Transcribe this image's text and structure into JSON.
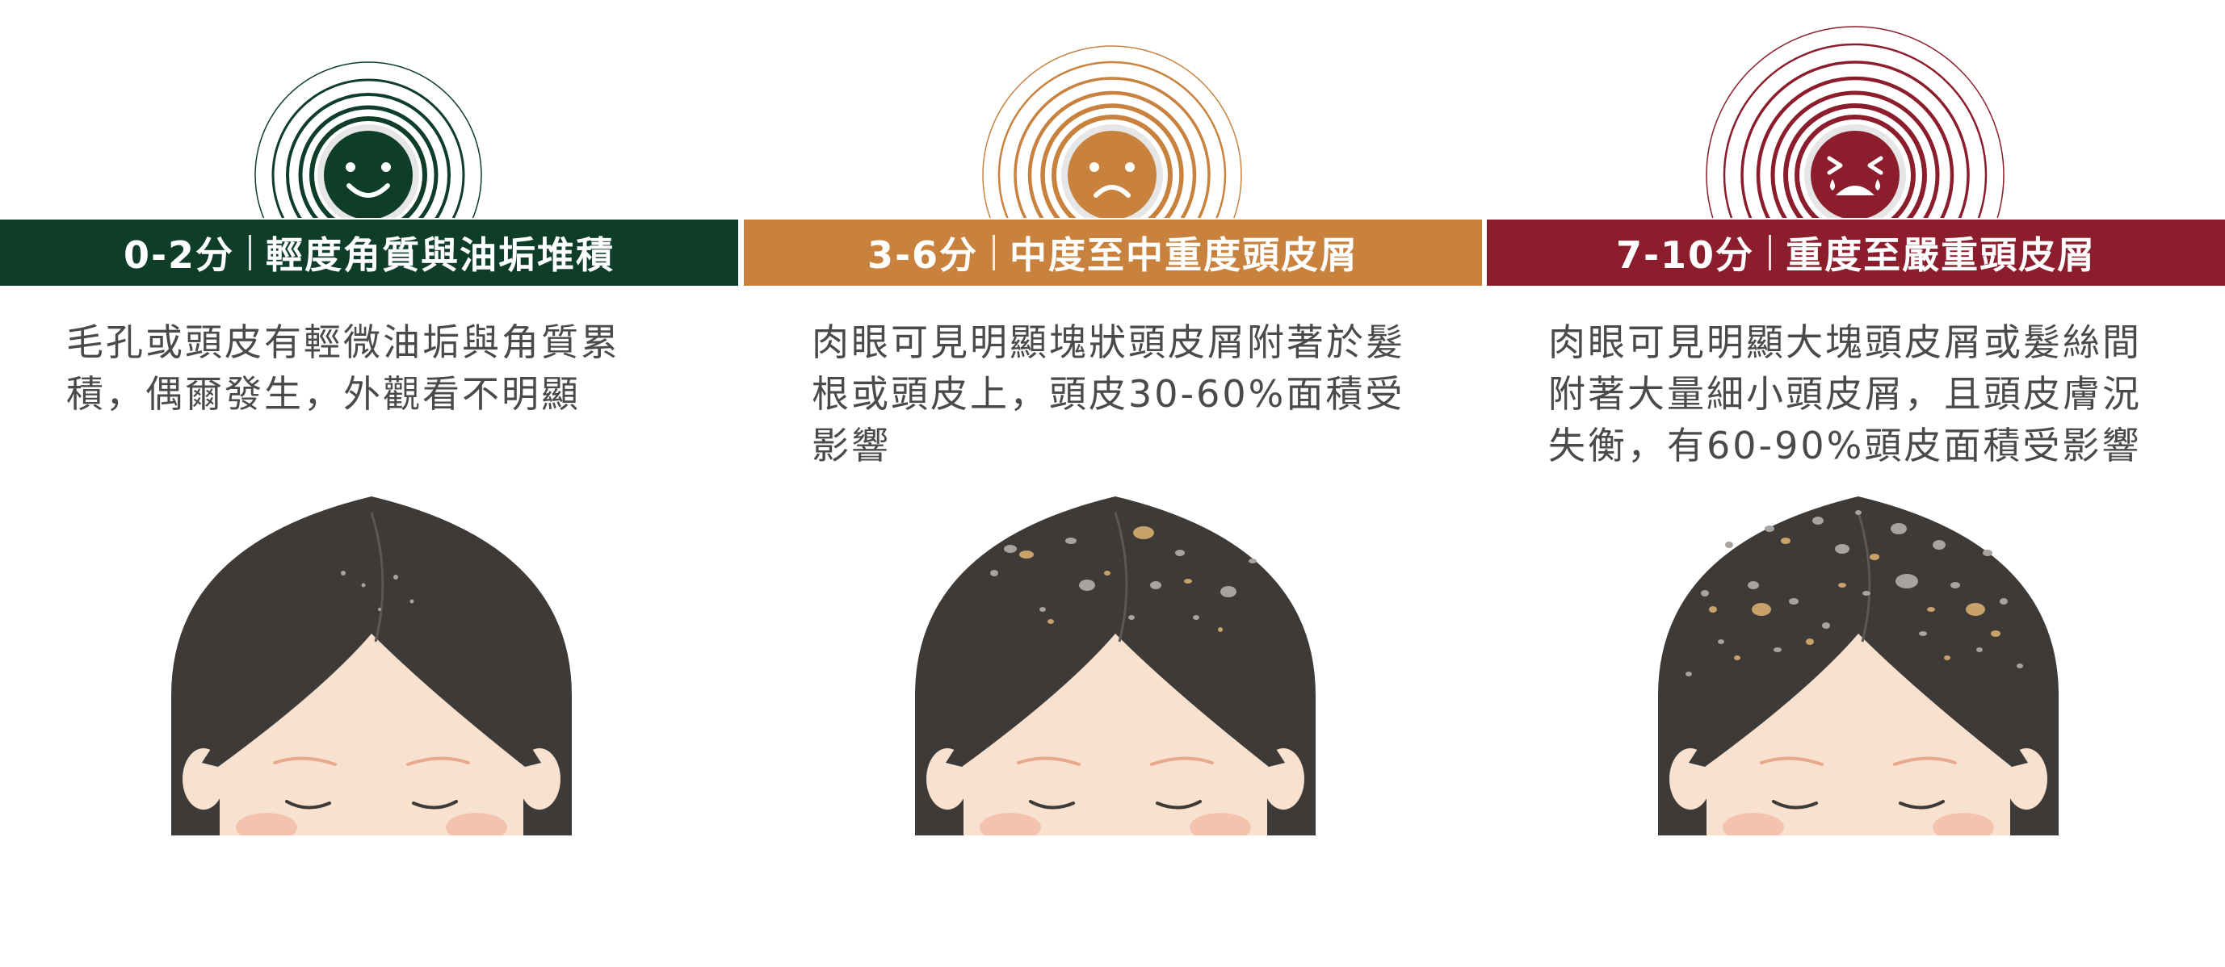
{
  "panels": [
    {
      "score": "0-2分",
      "title": "輕度角質與油垢堆積",
      "description": "毛孔或頭皮有輕微油垢與角質累積，偶爾發生，外觀看不明顯",
      "color": "#0e3d2a",
      "face_icon": "smile-face-icon",
      "flakes": "light"
    },
    {
      "score": "3-6分",
      "title": "中度至中重度頭皮屑",
      "description": "肉眼可見明顯塊狀頭皮屑附著於髮根或頭皮上，頭皮30-60%面積受影響",
      "color": "#c9823e",
      "face_icon": "frown-face-icon",
      "flakes": "moderate"
    },
    {
      "score": "7-10分",
      "title": "重度至嚴重頭皮屑",
      "description": "肉眼可見明顯大塊頭皮屑或髮絲間附著大量細小頭皮屑，且頭皮膚況失衡，有60-90%頭皮面積受影響",
      "color": "#8c1d2c",
      "face_icon": "crying-face-icon",
      "flakes": "severe"
    }
  ],
  "colors": {
    "hair": "#3d3a38",
    "skin": "#f8e2cf",
    "eyebrow": "#e8a98a",
    "blush": "#f3c3b0",
    "flake_gray": "#a6a3a0",
    "flake_tan": "#c9a26a"
  }
}
